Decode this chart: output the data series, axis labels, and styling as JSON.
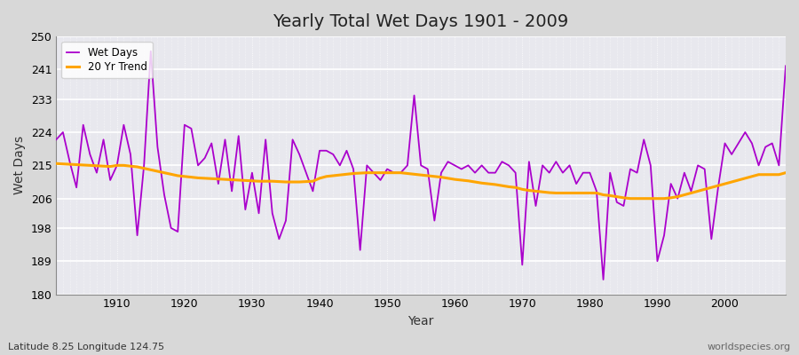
{
  "title": "Yearly Total Wet Days 1901 - 2009",
  "xlabel": "Year",
  "ylabel": "Wet Days",
  "subtitle": "Latitude 8.25 Longitude 124.75",
  "watermark": "worldspecies.org",
  "wet_days_color": "#AA00CC",
  "trend_color": "#FFA500",
  "ylim": [
    180,
    250
  ],
  "yticks": [
    180,
    189,
    198,
    206,
    215,
    224,
    233,
    241,
    250
  ],
  "xlim": [
    1901,
    2009
  ],
  "xticks": [
    1910,
    1920,
    1930,
    1940,
    1950,
    1960,
    1970,
    1980,
    1990,
    2000
  ],
  "years": [
    1901,
    1902,
    1903,
    1904,
    1905,
    1906,
    1907,
    1908,
    1909,
    1910,
    1911,
    1912,
    1913,
    1914,
    1915,
    1916,
    1917,
    1918,
    1919,
    1920,
    1921,
    1922,
    1923,
    1924,
    1925,
    1926,
    1927,
    1928,
    1929,
    1930,
    1931,
    1932,
    1933,
    1934,
    1935,
    1936,
    1937,
    1938,
    1939,
    1940,
    1941,
    1942,
    1943,
    1944,
    1945,
    1946,
    1947,
    1948,
    1949,
    1950,
    1951,
    1952,
    1953,
    1954,
    1955,
    1956,
    1957,
    1958,
    1959,
    1960,
    1961,
    1962,
    1963,
    1964,
    1965,
    1966,
    1967,
    1968,
    1969,
    1970,
    1971,
    1972,
    1973,
    1974,
    1975,
    1976,
    1977,
    1978,
    1979,
    1980,
    1981,
    1982,
    1983,
    1984,
    1985,
    1986,
    1987,
    1988,
    1989,
    1990,
    1991,
    1992,
    1993,
    1994,
    1995,
    1996,
    1997,
    1998,
    1999,
    2000,
    2001,
    2002,
    2003,
    2004,
    2005,
    2006,
    2007,
    2008,
    2009
  ],
  "wet_days": [
    222,
    224,
    216,
    209,
    226,
    218,
    213,
    222,
    211,
    215,
    226,
    218,
    196,
    215,
    246,
    220,
    207,
    198,
    197,
    226,
    225,
    215,
    217,
    221,
    210,
    222,
    208,
    223,
    203,
    213,
    202,
    222,
    202,
    195,
    200,
    222,
    218,
    213,
    208,
    219,
    219,
    218,
    215,
    219,
    214,
    192,
    215,
    213,
    211,
    214,
    213,
    213,
    215,
    234,
    215,
    214,
    200,
    213,
    216,
    215,
    214,
    215,
    213,
    215,
    213,
    213,
    216,
    215,
    213,
    188,
    216,
    204,
    215,
    213,
    216,
    213,
    215,
    210,
    213,
    213,
    208,
    184,
    213,
    205,
    204,
    214,
    213,
    222,
    215,
    189,
    196,
    210,
    206,
    213,
    208,
    215,
    214,
    195,
    209,
    221,
    218,
    221,
    224,
    221,
    215,
    220,
    221,
    215,
    242
  ],
  "trend": [
    215.5,
    215.4,
    215.3,
    215.2,
    215.1,
    215.0,
    214.9,
    214.8,
    214.7,
    215.0,
    215.0,
    214.8,
    214.6,
    214.2,
    213.8,
    213.4,
    213.0,
    212.6,
    212.2,
    212.0,
    211.8,
    211.6,
    211.5,
    211.4,
    211.3,
    211.2,
    211.1,
    211.0,
    210.9,
    210.8,
    210.7,
    210.7,
    210.7,
    210.6,
    210.5,
    210.5,
    210.5,
    210.6,
    210.7,
    211.5,
    212.0,
    212.2,
    212.4,
    212.6,
    212.8,
    212.9,
    213.0,
    213.0,
    213.0,
    213.0,
    213.0,
    213.0,
    212.8,
    212.6,
    212.4,
    212.2,
    212.0,
    211.8,
    211.5,
    211.2,
    211.0,
    210.8,
    210.5,
    210.2,
    210.0,
    209.8,
    209.5,
    209.2,
    209.0,
    208.5,
    208.2,
    208.0,
    207.8,
    207.6,
    207.5,
    207.5,
    207.5,
    207.5,
    207.5,
    207.5,
    207.5,
    207.0,
    206.8,
    206.5,
    206.2,
    206.0,
    206.0,
    206.0,
    206.0,
    206.0,
    206.0,
    206.2,
    206.5,
    207.0,
    207.5,
    208.0,
    208.5,
    209.0,
    209.5,
    210.0,
    210.5,
    211.0,
    211.5,
    212.0,
    212.5,
    212.5,
    212.5,
    212.5,
    213.0
  ]
}
